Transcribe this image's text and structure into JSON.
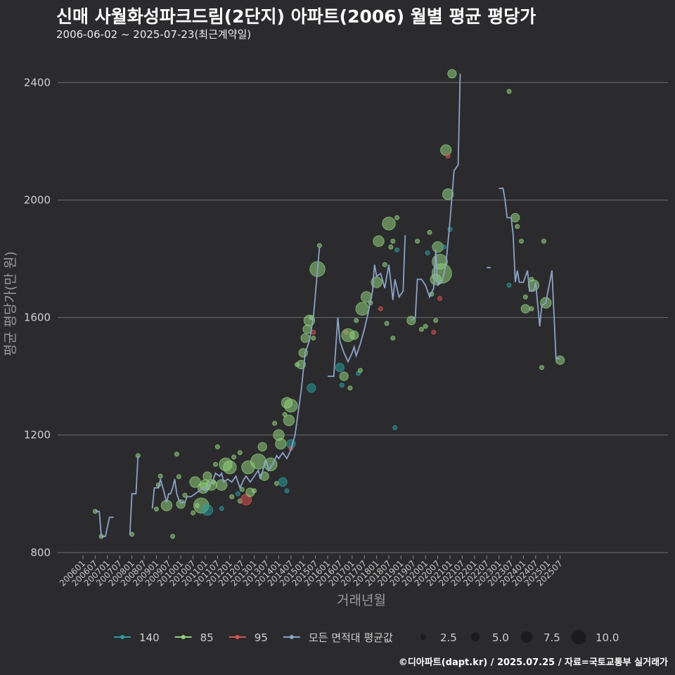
{
  "header": {
    "title": "신매 사월화성파크드림(2단지) 아파트(2006) 월별 평균 평당가",
    "subtitle": "2006-06-02 ~ 2025-07-23(최근계약일)"
  },
  "footer": {
    "credit": "©디아파트(dapt.kr) / 2025.07.25 / 자료=국토교통부 실거래가"
  },
  "chart_data": {
    "type": "scatter+line",
    "xlabel": "거래년월",
    "ylabel": "평균 평당가(만 원)",
    "ylim": [
      790,
      2480
    ],
    "yticks": [
      800,
      1200,
      1600,
      2000,
      2400
    ],
    "x_range_months": [
      "2006-01",
      "2025-12"
    ],
    "xticks": [
      "200601",
      "200607",
      "200701",
      "200707",
      "200801",
      "200807",
      "200901",
      "200907",
      "201001",
      "201007",
      "201101",
      "201107",
      "201201",
      "201207",
      "201301",
      "201307",
      "201401",
      "201407",
      "201501",
      "201507",
      "201601",
      "201607",
      "201701",
      "201707",
      "201801",
      "201807",
      "201901",
      "201907",
      "202001",
      "202007",
      "202101",
      "202107",
      "202201",
      "202207",
      "202301",
      "202307",
      "202401",
      "202407",
      "202501",
      "202507"
    ],
    "colors": {
      "140": "#2a9d9d",
      "85": "#8fd27a",
      "95": "#d9534f",
      "avg": "#8aa4c8"
    },
    "legend": {
      "series": [
        {
          "key": "140",
          "label": "140"
        },
        {
          "key": "85",
          "label": "85"
        },
        {
          "key": "95",
          "label": "95"
        },
        {
          "key": "avg",
          "label": "모든 면적대 평균값"
        }
      ],
      "sizes": [
        {
          "value": 2.5,
          "label": "2.5"
        },
        {
          "value": 5.0,
          "label": "5.0"
        },
        {
          "value": 7.5,
          "label": "7.5"
        },
        {
          "value": 10.0,
          "label": "10.0"
        }
      ]
    },
    "avg_line_segments": [
      [
        [
          "2006-07",
          940
        ],
        [
          "2006-09",
          940
        ],
        [
          "2006-10",
          855
        ],
        [
          "2006-12",
          855
        ],
        [
          "2007-02",
          920
        ],
        [
          "2007-04",
          920
        ]
      ],
      [
        [
          "2007-12",
          860
        ],
        [
          "2008-01",
          1000
        ],
        [
          "2008-03",
          1000
        ],
        [
          "2008-04",
          1130
        ]
      ],
      [
        [
          "2008-11",
          950
        ],
        [
          "2008-12",
          1020
        ],
        [
          "2009-02",
          1020
        ],
        [
          "2009-03",
          1050
        ],
        [
          "2009-05",
          1000
        ],
        [
          "2009-06",
          970
        ],
        [
          "2009-07",
          1000
        ],
        [
          "2009-08",
          1000
        ],
        [
          "2009-09",
          1020
        ],
        [
          "2009-10",
          1050
        ],
        [
          "2009-11",
          1000
        ],
        [
          "2009-12",
          980
        ],
        [
          "2010-01",
          970
        ],
        [
          "2010-03",
          970
        ],
        [
          "2010-04",
          990
        ],
        [
          "2010-06",
          990
        ],
        [
          "2010-08",
          1000
        ],
        [
          "2010-10",
          1010
        ],
        [
          "2010-12",
          1020
        ],
        [
          "2011-01",
          1010
        ],
        [
          "2011-03",
          1030
        ],
        [
          "2011-05",
          1050
        ],
        [
          "2011-06",
          1070
        ],
        [
          "2011-08",
          1060
        ],
        [
          "2011-09",
          1070
        ],
        [
          "2011-10",
          1040
        ],
        [
          "2011-12",
          1050
        ],
        [
          "2012-02",
          1040
        ],
        [
          "2012-04",
          1060
        ],
        [
          "2012-05",
          1040
        ],
        [
          "2012-06",
          1020
        ],
        [
          "2012-08",
          1050
        ],
        [
          "2012-09",
          1060
        ],
        [
          "2012-11",
          1040
        ],
        [
          "2013-01",
          1060
        ],
        [
          "2013-03",
          1080
        ],
        [
          "2013-04",
          1050
        ],
        [
          "2013-06",
          1100
        ],
        [
          "2013-07",
          1110
        ],
        [
          "2013-08",
          1080
        ],
        [
          "2013-10",
          1100
        ],
        [
          "2013-12",
          1130
        ],
        [
          "2014-01",
          1120
        ],
        [
          "2014-03",
          1140
        ],
        [
          "2014-05",
          1120
        ],
        [
          "2014-07",
          1150
        ],
        [
          "2014-09",
          1200
        ],
        [
          "2014-10",
          1250
        ],
        [
          "2014-12",
          1350
        ],
        [
          "2015-02",
          1480
        ],
        [
          "2015-04",
          1520
        ],
        [
          "2015-06",
          1600
        ],
        [
          "2015-08",
          1760
        ],
        [
          "2015-09",
          1840
        ]
      ],
      [
        [
          "2016-01",
          1400
        ],
        [
          "2016-04",
          1400
        ],
        [
          "2016-06",
          1600
        ],
        [
          "2016-07",
          1520
        ],
        [
          "2016-09",
          1480
        ],
        [
          "2016-11",
          1450
        ],
        [
          "2017-01",
          1480
        ],
        [
          "2017-02",
          1500
        ],
        [
          "2017-03",
          1470
        ],
        [
          "2017-05",
          1510
        ],
        [
          "2017-07",
          1560
        ],
        [
          "2017-09",
          1620
        ],
        [
          "2017-11",
          1690
        ],
        [
          "2017-12",
          1780
        ],
        [
          "2018-01",
          1740
        ],
        [
          "2018-03",
          1750
        ],
        [
          "2018-05",
          1700
        ],
        [
          "2018-07",
          1780
        ],
        [
          "2018-09",
          1660
        ],
        [
          "2018-10",
          1730
        ],
        [
          "2018-12",
          1670
        ],
        [
          "2019-02",
          1690
        ],
        [
          "2019-03",
          1880
        ]
      ],
      [
        [
          "2019-06",
          1590
        ],
        [
          "2019-08",
          1600
        ],
        [
          "2019-09",
          1730
        ],
        [
          "2019-11",
          1730
        ],
        [
          "2020-01",
          1710
        ],
        [
          "2020-03",
          1670
        ],
        [
          "2020-05",
          1700
        ],
        [
          "2020-06",
          1830
        ],
        [
          "2020-07",
          1710
        ],
        [
          "2020-09",
          1720
        ],
        [
          "2020-11",
          1780
        ],
        [
          "2021-01",
          1930
        ],
        [
          "2021-03",
          2100
        ],
        [
          "2021-05",
          2120
        ],
        [
          "2021-06",
          2430
        ]
      ],
      [
        [
          "2022-07",
          1770
        ],
        [
          "2022-09",
          1770
        ]
      ],
      [
        [
          "2023-01",
          2040
        ],
        [
          "2023-03",
          2040
        ],
        [
          "2023-04",
          2000
        ],
        [
          "2023-05",
          1940
        ],
        [
          "2023-07",
          1940
        ],
        [
          "2023-08",
          1880
        ],
        [
          "2023-09",
          1720
        ],
        [
          "2023-10",
          1760
        ],
        [
          "2023-11",
          1720
        ],
        [
          "2024-01",
          1720
        ],
        [
          "2024-03",
          1760
        ],
        [
          "2024-04",
          1690
        ],
        [
          "2024-06",
          1690
        ],
        [
          "2024-07",
          1720
        ],
        [
          "2024-09",
          1570
        ],
        [
          "2024-10",
          1640
        ],
        [
          "2024-12",
          1650
        ],
        [
          "2025-03",
          1760
        ],
        [
          "2025-05",
          1460
        ],
        [
          "2025-07",
          1460
        ]
      ]
    ],
    "scatter": [
      [
        "2006-07",
        940,
        1,
        "85"
      ],
      [
        "2006-10",
        855,
        1,
        "85"
      ],
      [
        "2008-01",
        862,
        1,
        "85"
      ],
      [
        "2008-04",
        1130,
        1,
        "85"
      ],
      [
        "2009-01",
        948,
        1,
        "85"
      ],
      [
        "2009-02",
        1030,
        1,
        "85"
      ],
      [
        "2009-03",
        1060,
        1,
        "85"
      ],
      [
        "2009-06",
        960,
        4,
        "85"
      ],
      [
        "2009-09",
        855,
        1,
        "85"
      ],
      [
        "2009-11",
        1135,
        1,
        "85"
      ],
      [
        "2009-12",
        1058,
        1,
        "85"
      ],
      [
        "2010-01",
        965,
        3,
        "85"
      ],
      [
        "2010-03",
        995,
        1,
        "85"
      ],
      [
        "2010-07",
        935,
        1,
        "85"
      ],
      [
        "2010-08",
        1040,
        4,
        "85"
      ],
      [
        "2010-09",
        960,
        1,
        "85"
      ],
      [
        "2010-11",
        960,
        6,
        "85"
      ],
      [
        "2010-12",
        1020,
        4,
        "85"
      ],
      [
        "2011-01",
        1030,
        4,
        "85"
      ],
      [
        "2011-02",
        1060,
        3,
        "85"
      ],
      [
        "2011-02",
        945,
        4,
        "140"
      ],
      [
        "2011-04",
        1030,
        4,
        "85"
      ],
      [
        "2011-05",
        1040,
        1,
        "85"
      ],
      [
        "2011-06",
        1100,
        1,
        "85"
      ],
      [
        "2011-07",
        1160,
        1,
        "85"
      ],
      [
        "2011-09",
        1030,
        4,
        "85"
      ],
      [
        "2011-09",
        950,
        1,
        "140"
      ],
      [
        "2011-11",
        1100,
        5,
        "85"
      ],
      [
        "2012-01",
        1090,
        5,
        "85"
      ],
      [
        "2012-02",
        990,
        1,
        "85"
      ],
      [
        "2012-03",
        1125,
        1,
        "85"
      ],
      [
        "2012-05",
        1000,
        1,
        "140"
      ],
      [
        "2012-06",
        1140,
        1,
        "85"
      ],
      [
        "2012-06",
        975,
        1,
        "85"
      ],
      [
        "2012-07",
        1015,
        1,
        "85"
      ],
      [
        "2012-09",
        980,
        4,
        "95"
      ],
      [
        "2012-10",
        1090,
        5,
        "85"
      ],
      [
        "2012-11",
        1005,
        3,
        "85"
      ],
      [
        "2013-01",
        1010,
        1,
        "85"
      ],
      [
        "2013-03",
        1110,
        6,
        "85"
      ],
      [
        "2013-05",
        1160,
        3,
        "85"
      ],
      [
        "2013-06",
        1060,
        3,
        "85"
      ],
      [
        "2013-09",
        1100,
        5,
        "85"
      ],
      [
        "2013-11",
        1240,
        1,
        "85"
      ],
      [
        "2013-12",
        1035,
        1,
        "85"
      ],
      [
        "2014-01",
        1200,
        4,
        "85"
      ],
      [
        "2014-02",
        1170,
        4,
        "85"
      ],
      [
        "2014-03",
        1040,
        3,
        "140"
      ],
      [
        "2014-04",
        1270,
        1,
        "85"
      ],
      [
        "2014-05",
        1310,
        4,
        "85"
      ],
      [
        "2014-05",
        1010,
        1,
        "140"
      ],
      [
        "2014-06",
        1250,
        4,
        "85"
      ],
      [
        "2014-07",
        1300,
        5,
        "85"
      ],
      [
        "2014-07",
        1170,
        3,
        "140"
      ],
      [
        "2014-07",
        1155,
        1,
        "95"
      ],
      [
        "2014-10",
        1440,
        1,
        "85"
      ],
      [
        "2014-12",
        1440,
        3,
        "85"
      ],
      [
        "2015-01",
        1480,
        3,
        "85"
      ],
      [
        "2015-02",
        1530,
        3,
        "85"
      ],
      [
        "2015-03",
        1560,
        3,
        "85"
      ],
      [
        "2015-04",
        1590,
        4,
        "85"
      ],
      [
        "2015-05",
        1600,
        1,
        "85"
      ],
      [
        "2015-05",
        1360,
        3,
        "140"
      ],
      [
        "2015-06",
        1550,
        1,
        "95"
      ],
      [
        "2015-06",
        1530,
        1,
        "85"
      ],
      [
        "2015-08",
        1765,
        6,
        "85"
      ],
      [
        "2015-09",
        1845,
        1,
        "85"
      ],
      [
        "2016-07",
        1430,
        3,
        "140"
      ],
      [
        "2016-08",
        1370,
        1,
        "140"
      ],
      [
        "2016-09",
        1400,
        3,
        "85"
      ],
      [
        "2016-10",
        1550,
        1,
        "95"
      ],
      [
        "2016-11",
        1540,
        5,
        "85"
      ],
      [
        "2016-12",
        1360,
        1,
        "85"
      ],
      [
        "2017-02",
        1540,
        3,
        "85"
      ],
      [
        "2017-03",
        1590,
        1,
        "85"
      ],
      [
        "2017-04",
        1410,
        1,
        "140"
      ],
      [
        "2017-05",
        1420,
        1,
        "85"
      ],
      [
        "2017-06",
        1630,
        5,
        "85"
      ],
      [
        "2017-08",
        1670,
        4,
        "85"
      ],
      [
        "2017-10",
        1650,
        1,
        "85"
      ],
      [
        "2018-01",
        1720,
        4,
        "85"
      ],
      [
        "2018-02",
        1860,
        4,
        "85"
      ],
      [
        "2018-03",
        1630,
        1,
        "95"
      ],
      [
        "2018-05",
        1780,
        1,
        "85"
      ],
      [
        "2018-06",
        1580,
        1,
        "85"
      ],
      [
        "2018-07",
        1920,
        5,
        "85"
      ],
      [
        "2018-08",
        1840,
        1,
        "85"
      ],
      [
        "2018-09",
        1530,
        1,
        "85"
      ],
      [
        "2018-09",
        1860,
        1,
        "85"
      ],
      [
        "2018-10",
        1225,
        1,
        "140"
      ],
      [
        "2018-11",
        1940,
        1,
        "85"
      ],
      [
        "2018-11",
        1830,
        1,
        "140"
      ],
      [
        "2019-06",
        1590,
        3,
        "85"
      ],
      [
        "2019-09",
        1860,
        1,
        "85"
      ],
      [
        "2019-11",
        1560,
        1,
        "85"
      ],
      [
        "2020-01",
        1570,
        1,
        "85"
      ],
      [
        "2020-02",
        1820,
        1,
        "140"
      ],
      [
        "2020-03",
        1890,
        1,
        "85"
      ],
      [
        "2020-04",
        1680,
        1,
        "85"
      ],
      [
        "2020-05",
        1550,
        1,
        "95"
      ],
      [
        "2020-06",
        1590,
        1,
        "85"
      ],
      [
        "2020-06",
        1730,
        4,
        "85"
      ],
      [
        "2020-07",
        1840,
        4,
        "85"
      ],
      [
        "2020-08",
        1665,
        1,
        "95"
      ],
      [
        "2020-08",
        1790,
        6,
        "85"
      ],
      [
        "2020-09",
        1750,
        8,
        "85"
      ],
      [
        "2020-10",
        1840,
        1,
        "140"
      ],
      [
        "2020-11",
        2170,
        4,
        "85"
      ],
      [
        "2020-12",
        2150,
        1,
        "95"
      ],
      [
        "2020-12",
        2020,
        4,
        "85"
      ],
      [
        "2021-01",
        1900,
        1,
        "140"
      ],
      [
        "2021-02",
        2430,
        3,
        "85"
      ],
      [
        "2023-06",
        2370,
        1,
        "85"
      ],
      [
        "2023-06",
        1710,
        1,
        "140"
      ],
      [
        "2023-09",
        1940,
        3,
        "85"
      ],
      [
        "2023-10",
        1910,
        1,
        "85"
      ],
      [
        "2023-12",
        1860,
        1,
        "85"
      ],
      [
        "2024-02",
        1630,
        3,
        "85"
      ],
      [
        "2024-02",
        1670,
        1,
        "85"
      ],
      [
        "2024-05",
        1630,
        1,
        "85"
      ],
      [
        "2024-05",
        1730,
        1,
        "85"
      ],
      [
        "2024-06",
        1710,
        4,
        "85"
      ],
      [
        "2024-10",
        1430,
        1,
        "85"
      ],
      [
        "2024-11",
        1860,
        1,
        "85"
      ],
      [
        "2024-12",
        1650,
        4,
        "85"
      ],
      [
        "2025-07",
        1455,
        3,
        "85"
      ]
    ]
  }
}
